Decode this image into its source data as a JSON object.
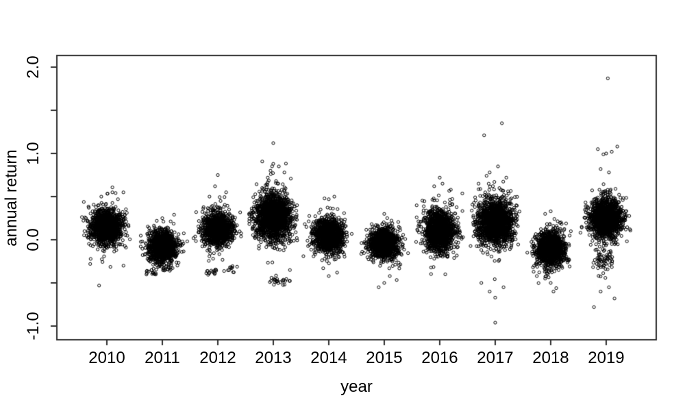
{
  "chart_data": {
    "type": "scatter",
    "title": "",
    "xlabel": "year",
    "ylabel": "annual return",
    "style": {
      "background": "#ffffff",
      "point_color": "#000000",
      "axis_color": "#2d2d2d",
      "text_color": "#000000",
      "point_shape": "open-circle"
    },
    "xlim": [
      2009.099,
      2019.902
    ],
    "ylim": [
      -1.158,
      2.135
    ],
    "x_ticks": [
      {
        "value": 2010,
        "label": "2010"
      },
      {
        "value": 2011,
        "label": "2011"
      },
      {
        "value": 2012,
        "label": "2012"
      },
      {
        "value": 2013,
        "label": "2013"
      },
      {
        "value": 2014,
        "label": "2014"
      },
      {
        "value": 2015,
        "label": "2015"
      },
      {
        "value": 2016,
        "label": "2016"
      },
      {
        "value": 2017,
        "label": "2017"
      },
      {
        "value": 2018,
        "label": "2018"
      },
      {
        "value": 2019,
        "label": "2019"
      }
    ],
    "y_ticks": [
      {
        "value": 2.0,
        "label": "2.0"
      },
      {
        "value": 1.5,
        "label": ""
      },
      {
        "value": 1.0,
        "label": "1.0"
      },
      {
        "value": 0.5,
        "label": ""
      },
      {
        "value": 0.0,
        "label": "0.0"
      },
      {
        "value": -0.5,
        "label": ""
      },
      {
        "value": -1.0,
        "label": "-1.0"
      }
    ],
    "clusters": [
      {
        "year": 2010,
        "mean": 0.15,
        "sd": 0.1,
        "sd_x": 0.14,
        "n": 1150,
        "halo": {
          "n": 110,
          "sd": 0.17,
          "sd_x": 0.16
        },
        "clumps": [],
        "strays": [
          [
            2010.1,
            0.55
          ],
          [
            2009.9,
            0.5
          ],
          [
            2010.2,
            0.47
          ],
          [
            2009.86,
            -0.53
          ],
          [
            2010.3,
            -0.3
          ],
          [
            2009.7,
            -0.28
          ]
        ]
      },
      {
        "year": 2011,
        "mean": -0.08,
        "sd": 0.085,
        "sd_x": 0.13,
        "n": 1050,
        "halo": {
          "n": 90,
          "sd": 0.14,
          "sd_x": 0.15
        },
        "clumps": [
          {
            "x": 2010.8,
            "y": -0.37,
            "n": 14,
            "sd_x": 0.06,
            "sd": 0.02
          },
          {
            "x": 2011.05,
            "y": -0.35,
            "n": 10,
            "sd_x": 0.05,
            "sd": 0.02
          }
        ],
        "strays": [
          [
            2011.0,
            0.25
          ],
          [
            2010.9,
            0.22
          ]
        ]
      },
      {
        "year": 2012,
        "mean": 0.12,
        "sd": 0.09,
        "sd_x": 0.13,
        "n": 1100,
        "halo": {
          "n": 95,
          "sd": 0.16,
          "sd_x": 0.15
        },
        "clumps": [
          {
            "x": 2011.9,
            "y": -0.37,
            "n": 16,
            "sd_x": 0.07,
            "sd": 0.025
          },
          {
            "x": 2012.25,
            "y": -0.33,
            "n": 10,
            "sd_x": 0.04,
            "sd": 0.025
          }
        ],
        "strays": [
          [
            2012.0,
            0.75
          ],
          [
            2011.95,
            0.62
          ],
          [
            2012.15,
            0.55
          ],
          [
            2011.85,
            0.5
          ],
          [
            2012.05,
            0.45
          ]
        ]
      },
      {
        "year": 2013,
        "mean": 0.27,
        "sd": 0.125,
        "sd_x": 0.16,
        "n": 1600,
        "halo": {
          "n": 150,
          "sd": 0.2,
          "sd_x": 0.18
        },
        "clumps": [
          {
            "x": 2013.1,
            "y": -0.48,
            "n": 26,
            "sd_x": 0.1,
            "sd": 0.022
          }
        ],
        "strays": [
          [
            2013.0,
            1.12
          ],
          [
            2013.0,
            0.88
          ],
          [
            2013.1,
            0.85
          ],
          [
            2012.95,
            0.8
          ],
          [
            2013.2,
            0.78
          ],
          [
            2012.9,
            0.72
          ],
          [
            2013.05,
            0.68
          ],
          [
            2012.8,
            0.6
          ],
          [
            2013.3,
            -0.35
          ]
        ]
      },
      {
        "year": 2014,
        "mean": 0.05,
        "sd": 0.095,
        "sd_x": 0.13,
        "n": 1150,
        "halo": {
          "n": 100,
          "sd": 0.16,
          "sd_x": 0.15
        },
        "clumps": [],
        "strays": [
          [
            2014.0,
            -0.42
          ],
          [
            2014.15,
            -0.38
          ],
          [
            2013.9,
            -0.33
          ],
          [
            2014.0,
            0.47
          ],
          [
            2014.1,
            0.5
          ]
        ]
      },
      {
        "year": 2015,
        "mean": -0.05,
        "sd": 0.085,
        "sd_x": 0.13,
        "n": 1100,
        "halo": {
          "n": 90,
          "sd": 0.14,
          "sd_x": 0.15
        },
        "clumps": [],
        "strays": [
          [
            2015.0,
            -0.5
          ],
          [
            2014.9,
            -0.55
          ],
          [
            2015.1,
            -0.42
          ],
          [
            2015.0,
            0.3
          ]
        ]
      },
      {
        "year": 2016,
        "mean": 0.11,
        "sd": 0.115,
        "sd_x": 0.14,
        "n": 1250,
        "halo": {
          "n": 110,
          "sd": 0.19,
          "sd_x": 0.16
        },
        "clumps": [],
        "strays": [
          [
            2016.0,
            0.72
          ],
          [
            2016.2,
            0.58
          ],
          [
            2015.9,
            0.62
          ],
          [
            2016.05,
            0.65
          ],
          [
            2016.1,
            -0.4
          ]
        ]
      },
      {
        "year": 2017,
        "mean": 0.2,
        "sd": 0.125,
        "sd_x": 0.16,
        "n": 1600,
        "halo": {
          "n": 150,
          "sd": 0.21,
          "sd_x": 0.18
        },
        "clumps": [],
        "strays": [
          [
            2017.12,
            1.35
          ],
          [
            2016.8,
            1.21
          ],
          [
            2017.05,
            0.85
          ],
          [
            2016.9,
            0.78
          ],
          [
            2017.2,
            0.72
          ],
          [
            2016.7,
            0.65
          ],
          [
            2017.0,
            -0.96
          ],
          [
            2017.0,
            -0.67
          ],
          [
            2016.9,
            -0.6
          ],
          [
            2017.15,
            -0.55
          ],
          [
            2016.75,
            -0.5
          ]
        ]
      },
      {
        "year": 2018,
        "mean": -0.1,
        "sd": 0.095,
        "sd_x": 0.13,
        "n": 1150,
        "halo": {
          "n": 100,
          "sd": 0.16,
          "sd_x": 0.15
        },
        "clumps": [],
        "strays": [
          [
            2018.0,
            -0.5
          ],
          [
            2018.1,
            -0.56
          ],
          [
            2017.9,
            -0.45
          ],
          [
            2018.05,
            -0.6
          ],
          [
            2017.75,
            -0.42
          ],
          [
            2017.7,
            -0.3
          ],
          [
            2018.0,
            0.33
          ],
          [
            2017.9,
            0.3
          ]
        ]
      },
      {
        "year": 2019,
        "mean": 0.25,
        "sd": 0.11,
        "sd_x": 0.14,
        "n": 1450,
        "halo": {
          "n": 130,
          "sd": 0.19,
          "sd_x": 0.16
        },
        "clumps": [
          {
            "x": 2018.95,
            "y": -0.25,
            "n": 60,
            "sd_x": 0.09,
            "sd": 0.08
          }
        ],
        "strays": [
          [
            2019.03,
            1.87
          ],
          [
            2018.85,
            1.05
          ],
          [
            2019.0,
            1.0
          ],
          [
            2019.1,
            1.02
          ],
          [
            2018.95,
            0.99
          ],
          [
            2019.2,
            1.08
          ],
          [
            2018.9,
            0.82
          ],
          [
            2019.05,
            0.78
          ],
          [
            2018.9,
            -0.6
          ],
          [
            2019.15,
            -0.68
          ],
          [
            2018.78,
            -0.78
          ],
          [
            2019.05,
            -0.55
          ]
        ]
      }
    ]
  }
}
